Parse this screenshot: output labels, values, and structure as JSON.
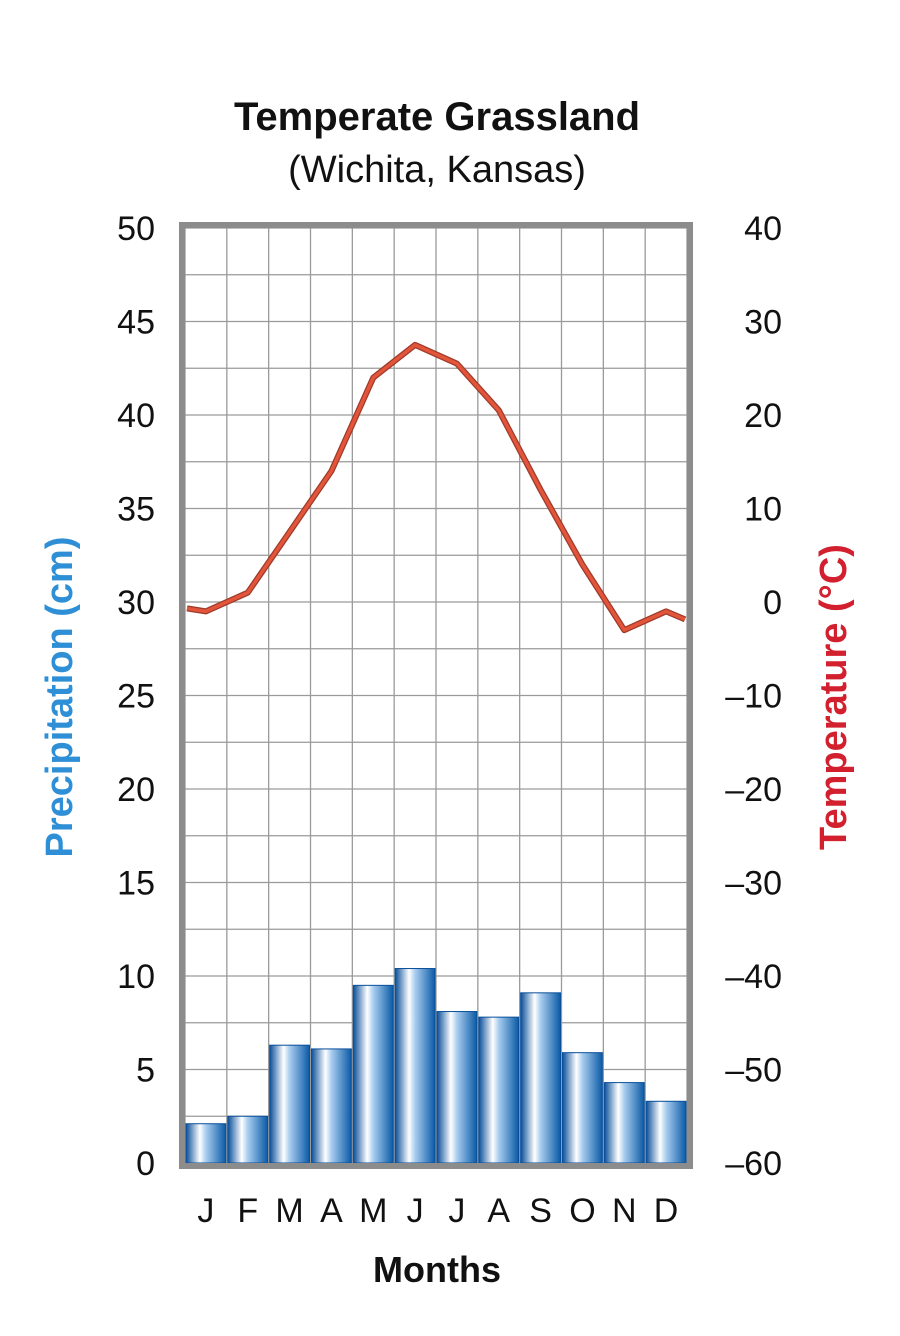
{
  "chart_data": {
    "type": "bar",
    "title": "Temperate Grassland",
    "subtitle": "(Wichita, Kansas)",
    "xlabel": "Months",
    "ylabel_left": "Precipitation (cm)",
    "ylabel_right": "Temperature (°C)",
    "categories": [
      "J",
      "F",
      "M",
      "A",
      "M",
      "J",
      "J",
      "A",
      "S",
      "O",
      "N",
      "D"
    ],
    "left_axis": {
      "ylim": [
        0,
        50
      ],
      "ticks": [
        "0",
        "5",
        "10",
        "15",
        "20",
        "25",
        "30",
        "35",
        "40",
        "45",
        "50"
      ]
    },
    "right_axis": {
      "ylim": [
        -60,
        40
      ],
      "ticks": [
        "–60",
        "–50",
        "–40",
        "–30",
        "–20",
        "–10",
        "0",
        "10",
        "20",
        "30",
        "40"
      ]
    },
    "series": [
      {
        "type": "bar",
        "axis": "left",
        "color": "#1f73c0",
        "values": [
          2.1,
          2.5,
          6.3,
          6.1,
          9.5,
          10.4,
          8.1,
          7.8,
          9.1,
          5.9,
          4.3,
          3.3
        ]
      },
      {
        "type": "line",
        "axis": "right",
        "color": "#e2553a",
        "values": [
          -1,
          1,
          7.5,
          14,
          24,
          27.5,
          25.5,
          20.5,
          12,
          4,
          -3,
          -1
        ]
      }
    ],
    "grid": true,
    "bar_gradient": [
      "#0a4f9a",
      "#ffffff",
      "#a9cdef",
      "#0a5aa6"
    ]
  }
}
